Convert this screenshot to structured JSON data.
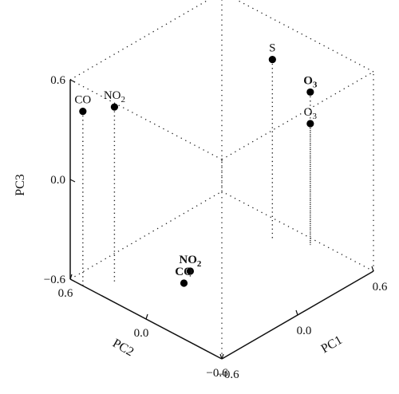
{
  "chart_data": {
    "type": "scatter",
    "subtype": "3d-scatter-with-drop-lines",
    "axes": {
      "x": {
        "label": "PC1",
        "range": [
          -0.6,
          0.6
        ],
        "ticks": [
          "−0.6",
          "0.0",
          "0.6"
        ]
      },
      "y": {
        "label": "PC2",
        "range": [
          -0.6,
          0.6
        ],
        "ticks": [
          "−0.6",
          "0.0",
          "0.6"
        ]
      },
      "z": {
        "label": "PC3",
        "range": [
          -0.6,
          0.6
        ],
        "ticks": [
          "−0.6",
          "0.0",
          "0.6"
        ]
      }
    },
    "grid": false,
    "box": "dotted",
    "points": [
      {
        "label_main": "CO",
        "label_sub": "",
        "bold": false,
        "pc1": -0.6,
        "pc2": 0.5,
        "pc3": 0.45
      },
      {
        "label_main": "NO",
        "label_sub": "2",
        "bold": false,
        "pc1": -0.45,
        "pc2": 0.4,
        "pc3": 0.45
      },
      {
        "label_main": "S",
        "label_sub": "",
        "bold": false,
        "pc1": 0.45,
        "pc2": 0.05,
        "pc3": 0.48
      },
      {
        "label_main": "O",
        "label_sub": "3",
        "bold": true,
        "pc1": 0.55,
        "pc2": -0.15,
        "pc3": 0.32
      },
      {
        "label_main": "O",
        "label_sub": "3",
        "bold": false,
        "pc1": 0.55,
        "pc2": -0.15,
        "pc3": 0.13
      },
      {
        "label_main": "CO",
        "label_sub": "",
        "bold": true,
        "pc1": -0.2,
        "pc2": 0.1,
        "pc3": -0.6
      },
      {
        "label_main": "NO",
        "label_sub": "2",
        "bold": true,
        "pc1": -0.15,
        "pc2": 0.1,
        "pc3": -0.55
      }
    ]
  }
}
